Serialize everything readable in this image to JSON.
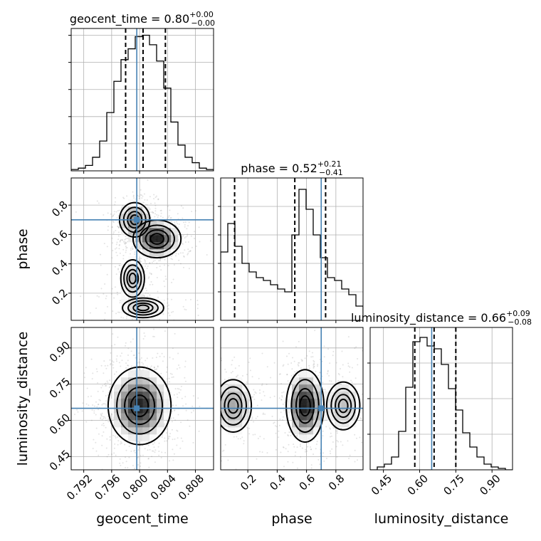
{
  "chart_data": {
    "type": "corner",
    "parameters": [
      "geocent_time",
      "phase",
      "luminosity_distance"
    ],
    "axes": {
      "geocent_time": {
        "range": [
          0.7902,
          0.8106
        ],
        "ticks": [
          0.792,
          0.796,
          0.8,
          0.804,
          0.808
        ],
        "tick_labels": [
          "0.792",
          "0.796",
          "0.800",
          "0.804",
          "0.808"
        ]
      },
      "phase": {
        "range": [
          0.015,
          0.985
        ],
        "ticks": [
          0.2,
          0.4,
          0.6,
          0.8
        ],
        "tick_labels": [
          "0.2",
          "0.4",
          "0.6",
          "0.8"
        ]
      },
      "luminosity_distance": {
        "range": [
          0.395,
          0.985
        ],
        "ticks": [
          0.45,
          0.6,
          0.75,
          0.9
        ],
        "tick_labels": [
          "0.45",
          "0.60",
          "0.75",
          "0.90"
        ]
      }
    },
    "titles": [
      {
        "param": "geocent_time",
        "text": "geocent_time = 0.80",
        "plus": "+0.00",
        "minus": "−0.00"
      },
      {
        "param": "phase",
        "text": "phase = 0.52",
        "plus": "+0.21",
        "minus": "−0.41"
      },
      {
        "param": "luminosity_distance",
        "text": "luminosity_distance = 0.66",
        "plus": "+0.09",
        "minus": "−0.08"
      }
    ],
    "truths": {
      "geocent_time": 0.7996,
      "phase": 0.7,
      "luminosity_distance": 0.65
    },
    "quantiles": {
      "geocent_time": [
        0.798,
        0.8005,
        0.8037
      ],
      "phase": [
        0.11,
        0.52,
        0.73
      ],
      "luminosity_distance": [
        0.58,
        0.66,
        0.75
      ]
    },
    "histograms": {
      "geocent_time": {
        "bin_edges": [
          0.7902,
          0.79122,
          0.79224,
          0.79326,
          0.79428,
          0.7953,
          0.79632,
          0.79734,
          0.79836,
          0.79938,
          0.8004,
          0.80142,
          0.80244,
          0.80346,
          0.80448,
          0.8055,
          0.80652,
          0.80754,
          0.80856,
          0.80958,
          0.8106
        ],
        "counts": [
          0.01,
          0.02,
          0.04,
          0.1,
          0.22,
          0.43,
          0.66,
          0.82,
          0.9,
          0.99,
          1.0,
          0.93,
          0.81,
          0.61,
          0.36,
          0.19,
          0.1,
          0.06,
          0.02,
          0.01
        ],
        "y_ticks": [
          0.2,
          0.4,
          0.6,
          0.8,
          1.0
        ],
        "ymax": 1.05
      },
      "phase": {
        "bin_edges": [
          0.015,
          0.0635,
          0.112,
          0.1605,
          0.209,
          0.2575,
          0.306,
          0.3545,
          0.403,
          0.4515,
          0.5,
          0.5485,
          0.597,
          0.6455,
          0.694,
          0.7425,
          0.791,
          0.8395,
          0.888,
          0.9365,
          0.985
        ],
        "counts": [
          0.48,
          0.68,
          0.52,
          0.4,
          0.34,
          0.3,
          0.28,
          0.25,
          0.22,
          0.2,
          0.6,
          0.92,
          0.78,
          0.6,
          0.44,
          0.3,
          0.28,
          0.22,
          0.18,
          0.1
        ],
        "y_ticks": [
          0.2,
          0.4,
          0.6,
          0.8
        ],
        "ymax": 1.0
      },
      "luminosity_distance": {
        "bin_edges": [
          0.395,
          0.4245,
          0.454,
          0.4835,
          0.513,
          0.5425,
          0.572,
          0.6015,
          0.631,
          0.6605,
          0.69,
          0.7195,
          0.749,
          0.7785,
          0.808,
          0.8375,
          0.867,
          0.8965,
          0.926,
          0.9555,
          0.985
        ],
        "counts": [
          0.0,
          0.02,
          0.04,
          0.09,
          0.27,
          0.58,
          0.9,
          0.93,
          0.87,
          0.85,
          0.74,
          0.57,
          0.42,
          0.26,
          0.16,
          0.09,
          0.04,
          0.02,
          0.01,
          0.0
        ],
        "y_ticks": [
          0.25,
          0.5,
          0.75
        ],
        "ymax": 1.0
      }
    },
    "joint_modes": {
      "phase_vs_geocent_time": [
        {
          "x": 0.7993,
          "y": 0.7,
          "sx": 0.0013,
          "sy": 0.07,
          "w": 0.55
        },
        {
          "x": 0.8025,
          "y": 0.57,
          "sx": 0.0016,
          "sy": 0.06,
          "w": 1.0
        },
        {
          "x": 0.799,
          "y": 0.3,
          "sx": 0.0012,
          "sy": 0.09,
          "w": 0.35
        },
        {
          "x": 0.8005,
          "y": 0.1,
          "sx": 0.0022,
          "sy": 0.05,
          "w": 0.3
        }
      ],
      "luminosity_distance_vs_geocent_time": [
        {
          "x": 0.8,
          "y": 0.66,
          "sx": 0.0021,
          "sy": 0.075,
          "w": 1.0
        }
      ],
      "luminosity_distance_vs_phase": [
        {
          "x": 0.1,
          "y": 0.66,
          "sx": 0.08,
          "sy": 0.07,
          "w": 0.45
        },
        {
          "x": 0.59,
          "y": 0.66,
          "sx": 0.06,
          "sy": 0.07,
          "w": 1.0
        },
        {
          "x": 0.85,
          "y": 0.66,
          "sx": 0.08,
          "sy": 0.07,
          "w": 0.35
        }
      ]
    }
  }
}
